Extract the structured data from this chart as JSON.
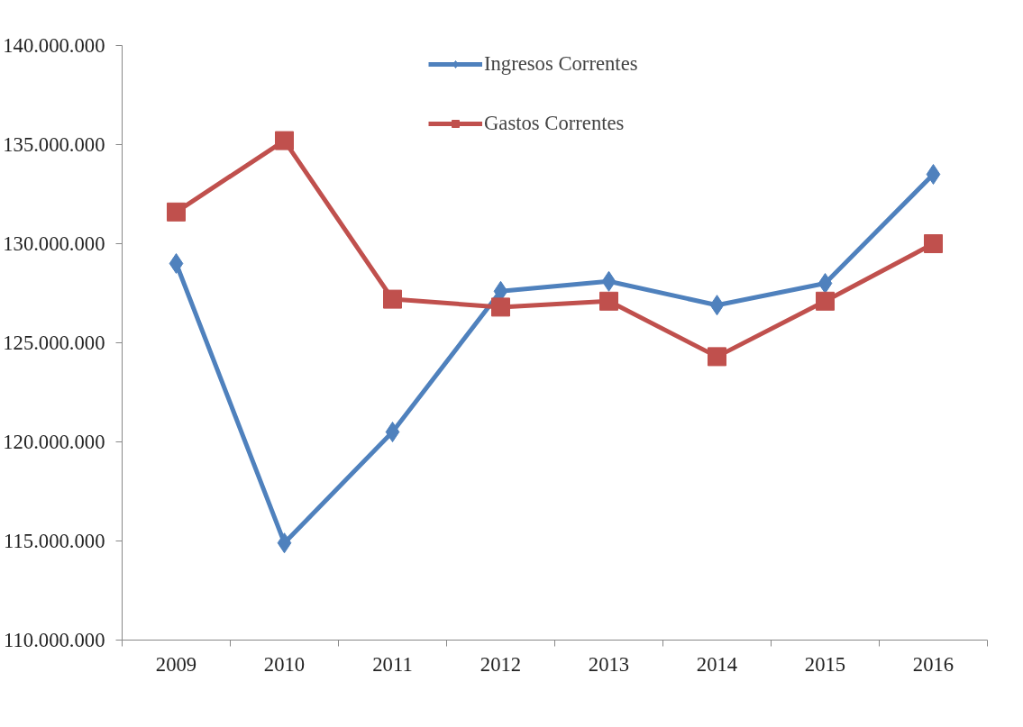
{
  "chart_data": {
    "type": "line",
    "categories": [
      "2009",
      "2010",
      "2011",
      "2012",
      "2013",
      "2014",
      "2015",
      "2016"
    ],
    "series": [
      {
        "name": "Ingresos Correntes",
        "color": "#4f81bd",
        "marker": "diamond",
        "values": [
          129000000,
          114900000,
          120500000,
          127600000,
          128100000,
          126900000,
          128000000,
          133500000
        ]
      },
      {
        "name": "Gastos Correntes",
        "color": "#c0504d",
        "marker": "square",
        "values": [
          131600000,
          135200000,
          127200000,
          126800000,
          127100000,
          124300000,
          127100000,
          130000000
        ]
      }
    ],
    "ylim": [
      110000000,
      140000000
    ],
    "yticks": [
      {
        "value": 110000000,
        "label": "110.000.000"
      },
      {
        "value": 115000000,
        "label": "115.000.000"
      },
      {
        "value": 120000000,
        "label": "120.000.000"
      },
      {
        "value": 125000000,
        "label": "125.000.000"
      },
      {
        "value": 130000000,
        "label": "130.000.000"
      },
      {
        "value": 135000000,
        "label": "135.000.000"
      },
      {
        "value": 140000000,
        "label": "140.000.000"
      }
    ],
    "grid": false,
    "legend": "top right",
    "line_style": "solid"
  }
}
